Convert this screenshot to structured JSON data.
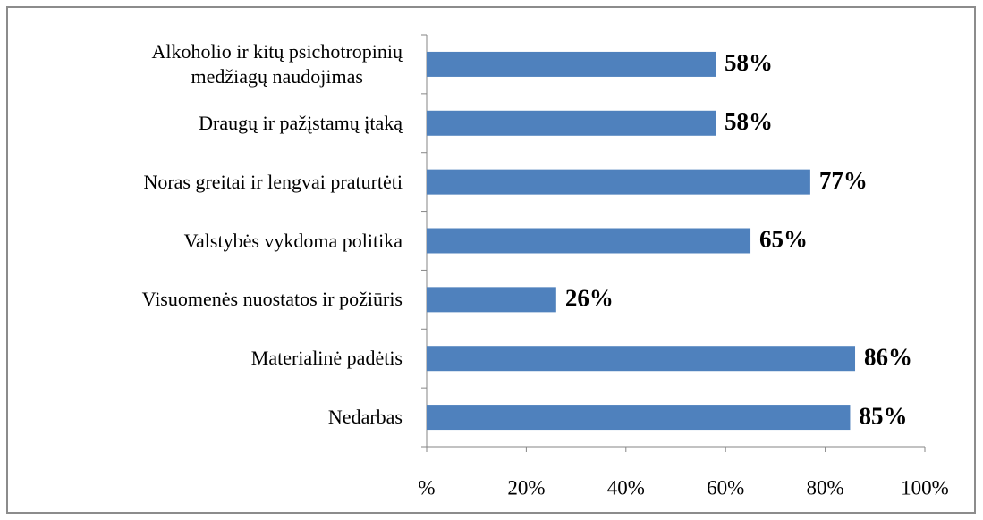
{
  "chart_data": {
    "type": "bar",
    "orientation": "horizontal",
    "categories": [
      "Alkoholio ir kitų psichotropinių\nmedžiagų naudojimas",
      "Draugų ir pažįstamų įtaką",
      "Noras greitai ir lengvai praturtėti",
      "Valstybės vykdoma politika",
      "Visuomenės nuostatos ir požiūris",
      "Materialinė padėtis",
      "Nedarbas"
    ],
    "values": [
      58,
      58,
      77,
      65,
      26,
      86,
      85
    ],
    "value_labels": [
      "58%",
      "58%",
      "77%",
      "65%",
      "26%",
      "86%",
      "85%"
    ],
    "color": "#4f81bd",
    "xlim": [
      0,
      100
    ],
    "xticks": [
      {
        "value": 0,
        "label": "%"
      },
      {
        "value": 20,
        "label": "20%"
      },
      {
        "value": 40,
        "label": "40%"
      },
      {
        "value": 60,
        "label": "60%"
      },
      {
        "value": 80,
        "label": "80%"
      },
      {
        "value": 100,
        "label": "100%"
      }
    ],
    "grid": false
  }
}
